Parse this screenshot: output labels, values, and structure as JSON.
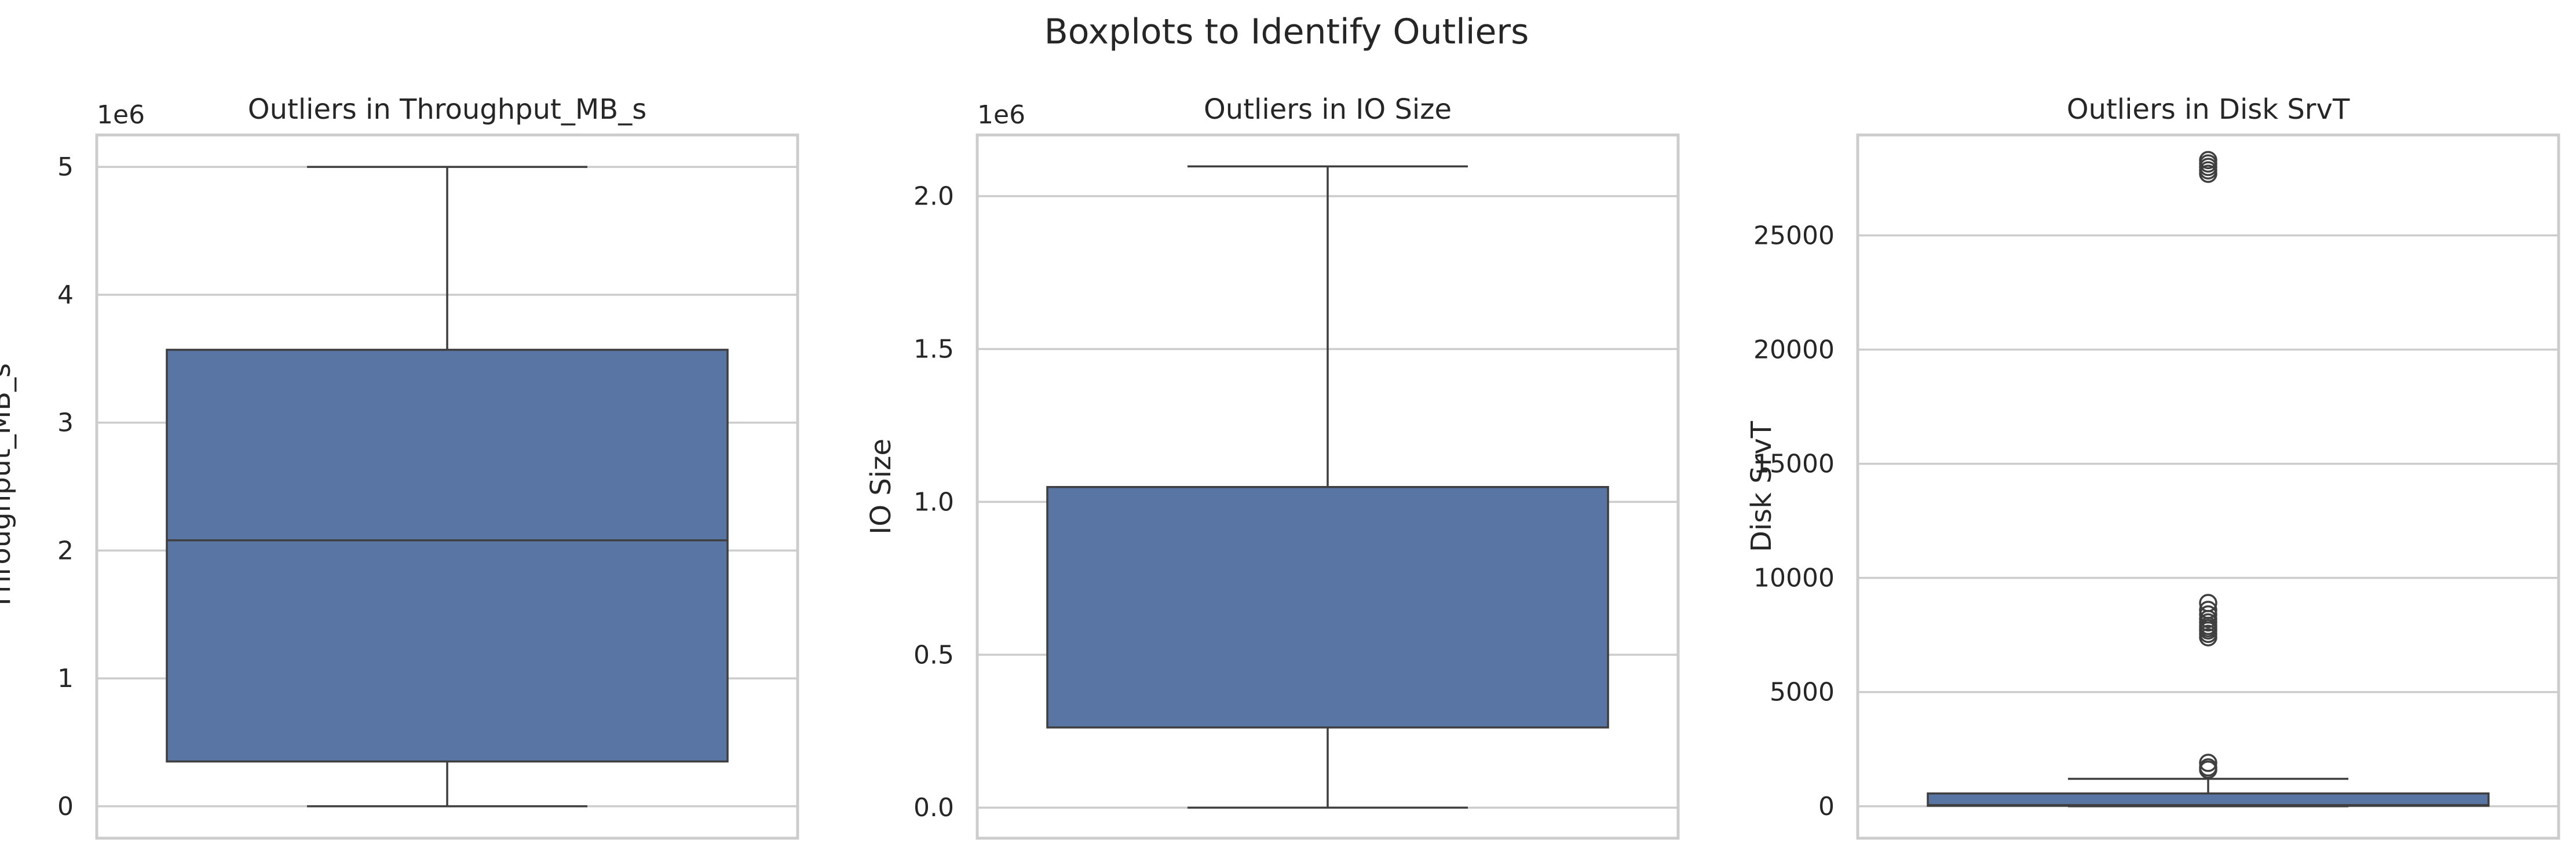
{
  "suptitle": "Boxplots to Identify Outliers",
  "colors": {
    "box_fill": "#5975a4",
    "line": "#3f3f3f",
    "grid": "#cccccc",
    "frame": "#cccccc",
    "text": "#262626"
  },
  "chart_data": [
    {
      "type": "box",
      "title": "Outliers in Throughput_MB_s",
      "xlabel": "",
      "ylabel": "Throughput_MB_s",
      "offset_label": "1e6",
      "ylim": [
        -250000,
        5250000
      ],
      "yticks": [
        0,
        1000000,
        2000000,
        3000000,
        4000000,
        5000000
      ],
      "ytick_labels": [
        "0",
        "1",
        "2",
        "3",
        "4",
        "5"
      ],
      "grid": true,
      "box": {
        "whisker_low": 0,
        "q1": 350000,
        "median": 2080000,
        "q3": 3570000,
        "whisker_high": 5000000,
        "outliers": []
      }
    },
    {
      "type": "box",
      "title": "Outliers in IO Size",
      "xlabel": "",
      "ylabel": "IO Size",
      "offset_label": "1e6",
      "ylim": [
        -100000,
        2200000
      ],
      "yticks": [
        0,
        500000,
        1000000,
        1500000,
        2000000
      ],
      "ytick_labels": [
        "0.0",
        "0.5",
        "1.0",
        "1.5",
        "2.0"
      ],
      "grid": true,
      "box": {
        "whisker_low": 0,
        "q1": 262144,
        "median": 1048576,
        "q3": 1048576,
        "whisker_high": 2097152,
        "outliers": []
      }
    },
    {
      "type": "box",
      "title": "Outliers in Disk SrvT",
      "xlabel": "",
      "ylabel": "Disk SrvT",
      "offset_label": "",
      "ylim": [
        -1400,
        29400
      ],
      "yticks": [
        0,
        5000,
        10000,
        15000,
        20000,
        25000
      ],
      "ytick_labels": [
        "0",
        "5000",
        "10000",
        "15000",
        "20000",
        "25000"
      ],
      "grid": true,
      "box": {
        "whisker_low": 0,
        "q1": 20,
        "median": 50,
        "q3": 560,
        "whisker_high": 1200,
        "outliers": [
          1600,
          1700,
          1900,
          7400,
          7550,
          7700,
          7800,
          7900,
          8050,
          8200,
          8400,
          8600,
          8900,
          27700,
          27850,
          28000,
          28150,
          28300
        ]
      }
    }
  ]
}
